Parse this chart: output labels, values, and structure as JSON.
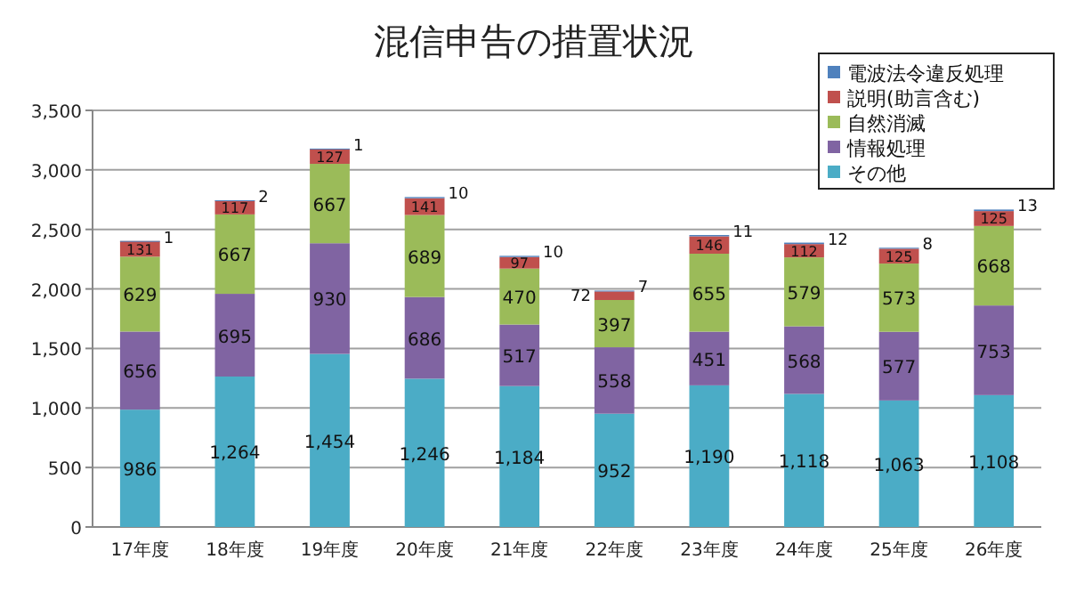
{
  "chart_data": {
    "type": "bar",
    "title": "混信申告の措置状況",
    "stacked": true,
    "data_labels": true,
    "legend": "top right",
    "grid": "y",
    "categories": [
      "17年度",
      "18年度",
      "19年度",
      "20年度",
      "21年度",
      "22年度",
      "23年度",
      "24年度",
      "25年度",
      "26年度"
    ],
    "ylim": [
      0,
      3500
    ],
    "yticks": [
      {
        "value": 0,
        "label": "0"
      },
      {
        "value": 500,
        "label": "500"
      },
      {
        "value": 1000,
        "label": "1,000"
      },
      {
        "value": 1500,
        "label": "1,500"
      },
      {
        "value": 2000,
        "label": "2,000"
      },
      {
        "value": 2500,
        "label": "2,500"
      },
      {
        "value": 3000,
        "label": "3,000"
      },
      {
        "value": 3500,
        "label": "3,500"
      }
    ],
    "series": [
      {
        "name": "その他",
        "color": "#4bacc6",
        "values": [
          986,
          1264,
          1454,
          1246,
          1184,
          952,
          1190,
          1118,
          1063,
          1108
        ],
        "value_labels": [
          "986",
          "1,264",
          "1,454",
          "1,246",
          "1,184",
          "952",
          "1,190",
          "1,118",
          "1,063",
          "1,108"
        ]
      },
      {
        "name": "情報処理",
        "color": "#8064a2",
        "values": [
          656,
          695,
          930,
          686,
          517,
          558,
          451,
          568,
          577,
          753
        ]
      },
      {
        "name": "自然消滅",
        "color": "#9bbb59",
        "values": [
          629,
          667,
          667,
          689,
          470,
          397,
          655,
          579,
          573,
          668
        ]
      },
      {
        "name": "説明(助言含む)",
        "color": "#c0504d",
        "values": [
          131,
          117,
          127,
          141,
          97,
          72,
          146,
          112,
          125,
          125
        ]
      },
      {
        "name": "電波法令違反処理",
        "color": "#4f81bd",
        "values": [
          1,
          2,
          1,
          10,
          10,
          7,
          11,
          12,
          8,
          13
        ]
      }
    ]
  }
}
